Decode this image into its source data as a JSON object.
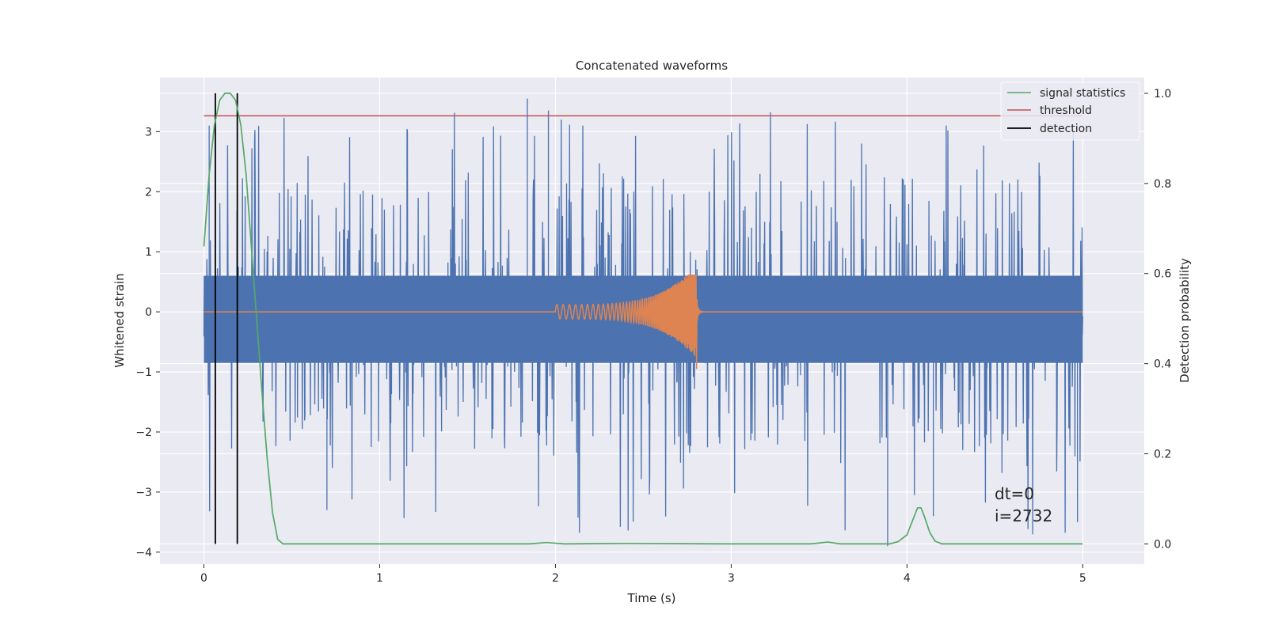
{
  "chart_data": {
    "type": "line",
    "title": "Concatenated waveforms",
    "xlabel": "Time (s)",
    "ylabel": "Whitened strain",
    "ylabel_right": "Detection probability",
    "xlim": [
      -0.25,
      5.35
    ],
    "ylim": [
      -4.2,
      3.9
    ],
    "ylim_right": [
      -0.045,
      1.035
    ],
    "xticks": [
      0,
      1,
      2,
      3,
      4,
      5
    ],
    "yticks": [
      -4,
      -3,
      -2,
      -1,
      0,
      1,
      2,
      3
    ],
    "yticks_right": [
      0.0,
      0.2,
      0.4,
      0.6,
      0.8,
      1.0
    ],
    "grid": true,
    "legend_position": "top-right",
    "colors": {
      "strain": "#4c72b0",
      "waveform": "#dd8452",
      "signal_statistics": "#55a868",
      "threshold": "#c44e52",
      "detection": "#000000",
      "background": "#eaeaf2",
      "grid": "#ffffff"
    },
    "legend": [
      {
        "label": "signal statistics",
        "color": "#55a868"
      },
      {
        "label": "threshold",
        "color": "#c44e52"
      },
      {
        "label": "detection",
        "color": "#000000"
      }
    ],
    "strain_noise": {
      "x_range": [
        0,
        5
      ],
      "band": [
        -0.85,
        0.6
      ],
      "peak_max": 3.55,
      "peak_min": -3.9
    },
    "waveform": {
      "x_range": [
        2.0,
        2.8
      ],
      "ringdown_end": 2.85,
      "peak_max": 0.62,
      "peak_min": -0.95
    },
    "threshold": {
      "y": 0.95,
      "x_range": [
        0,
        5
      ]
    },
    "detections": [
      0.065,
      0.19
    ],
    "signal_statistics": {
      "x": [
        0.0,
        0.03,
        0.06,
        0.09,
        0.12,
        0.15,
        0.18,
        0.21,
        0.24,
        0.27,
        0.3,
        0.33,
        0.36,
        0.39,
        0.42,
        0.45,
        0.5,
        1.0,
        1.5,
        1.85,
        1.95,
        2.05,
        2.4,
        3.0,
        3.45,
        3.55,
        3.62,
        3.9,
        3.95,
        4.0,
        4.03,
        4.06,
        4.08,
        4.1,
        4.13,
        4.16,
        4.2,
        4.3,
        5.0
      ],
      "y": [
        0.66,
        0.82,
        0.93,
        0.985,
        1.0,
        1.0,
        0.985,
        0.93,
        0.82,
        0.66,
        0.5,
        0.34,
        0.19,
        0.07,
        0.01,
        0.0,
        0.0,
        0.0,
        0.0,
        0.0,
        0.003,
        0.0,
        0.001,
        0.0,
        0.0,
        0.004,
        0.0,
        0.0,
        0.005,
        0.02,
        0.05,
        0.08,
        0.08,
        0.06,
        0.025,
        0.006,
        0.0,
        0.0,
        0.0
      ]
    },
    "annotations": [
      "dt=0",
      "i=2732"
    ]
  }
}
